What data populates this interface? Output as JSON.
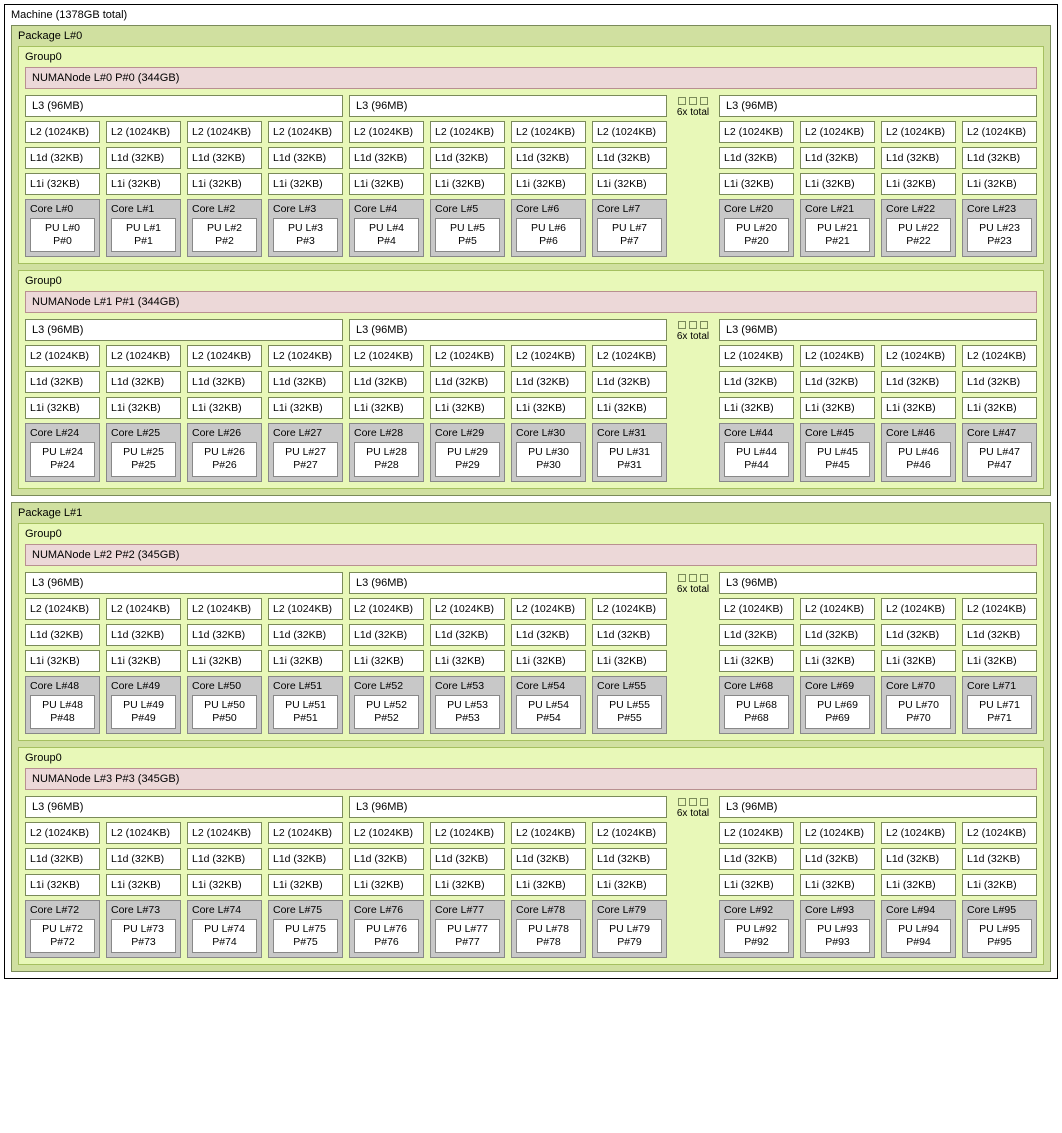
{
  "machine_label": "Machine (1378GB total)",
  "ellipsis_label": "6x total",
  "l3_label": "L3 (96MB)",
  "l2_label": "L2 (1024KB)",
  "l1d_label": "L1d (32KB)",
  "l1i_label": "L1i (32KB)",
  "packages": [
    {
      "label": "Package L#0",
      "groups": [
        {
          "label": "Group0",
          "numa": "NUMANode L#0 P#0 (344GB)",
          "cores": [
            [
              0,
              1,
              2,
              3
            ],
            [
              4,
              5,
              6,
              7
            ],
            [
              20,
              21,
              22,
              23
            ]
          ]
        },
        {
          "label": "Group0",
          "numa": "NUMANode L#1 P#1 (344GB)",
          "cores": [
            [
              24,
              25,
              26,
              27
            ],
            [
              28,
              29,
              30,
              31
            ],
            [
              44,
              45,
              46,
              47
            ]
          ]
        }
      ]
    },
    {
      "label": "Package L#1",
      "groups": [
        {
          "label": "Group0",
          "numa": "NUMANode L#2 P#2 (345GB)",
          "cores": [
            [
              48,
              49,
              50,
              51
            ],
            [
              52,
              53,
              54,
              55
            ],
            [
              68,
              69,
              70,
              71
            ]
          ]
        },
        {
          "label": "Group0",
          "numa": "NUMANode L#3 P#3 (345GB)",
          "cores": [
            [
              72,
              73,
              74,
              75
            ],
            [
              76,
              77,
              78,
              79
            ],
            [
              92,
              93,
              94,
              95
            ]
          ]
        }
      ]
    }
  ],
  "colors": {
    "package_bg": "#d0e0a0",
    "group_bg": "#e8f8b8",
    "numa_bg": "#ecd8d8",
    "core_bg": "#c8c8c8",
    "border_green": "#7a8a5a",
    "border_grey": "#888888"
  }
}
